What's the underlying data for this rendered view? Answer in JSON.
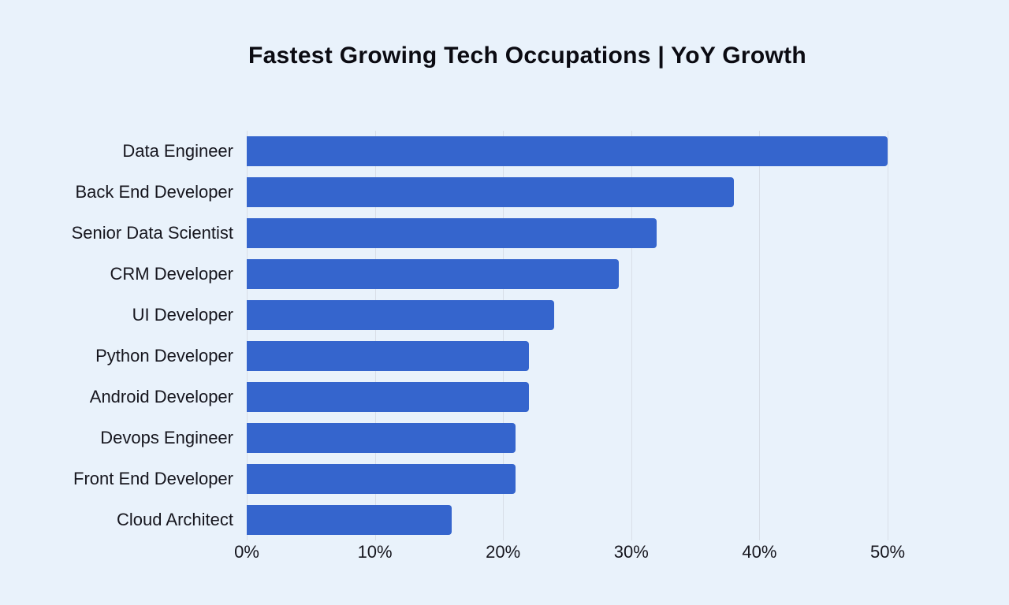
{
  "title": "Fastest Growing Tech Occupations | YoY Growth",
  "colors": {
    "background": "#e9f2fb",
    "bar": "#3565cd",
    "gridline": "#d8dee7",
    "text": "#15151d"
  },
  "chart_data": {
    "type": "bar",
    "orientation": "horizontal",
    "title": "Fastest Growing Tech Occupations | YoY Growth",
    "categories": [
      "Data Engineer",
      "Back End Developer",
      "Senior Data Scientist",
      "CRM Developer",
      "UI Developer",
      "Python Developer",
      "Android Developer",
      "Devops Engineer",
      "Front End Developer",
      "Cloud Architect"
    ],
    "values": [
      50,
      38,
      32,
      29,
      24,
      22,
      22,
      21,
      21,
      16
    ],
    "unit": "%",
    "xlabel": "",
    "ylabel": "",
    "x_ticks": [
      "0%",
      "10%",
      "20%",
      "30%",
      "40%",
      "50%"
    ],
    "xlim": [
      0,
      50
    ],
    "grid": "vertical",
    "legend": "none"
  }
}
